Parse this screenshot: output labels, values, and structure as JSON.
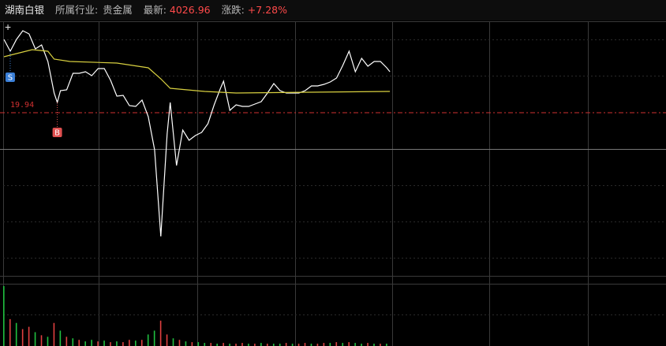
{
  "header": {
    "name": "湖南白银",
    "industry_label": "所属行业:",
    "industry": "贵金属",
    "latest_label": "最新:",
    "latest": "4026.96",
    "change_label": "涨跌:",
    "change": "+7.28%"
  },
  "chart_data": {
    "type": "line",
    "xlim": [
      0,
      210
    ],
    "ylim": [
      17.87,
      21.09
    ],
    "series": [
      {
        "color": "#ffffff",
        "x": [
          0,
          2,
          4,
          6,
          8,
          10,
          12,
          14,
          16,
          17,
          18,
          20,
          22,
          24,
          26,
          28,
          30,
          32,
          34,
          36,
          38,
          40,
          42,
          44,
          46,
          48,
          50,
          52,
          53,
          55,
          57,
          59,
          61,
          63,
          65,
          67,
          69,
          70,
          72,
          74,
          76,
          78,
          80,
          82,
          84,
          86,
          88,
          90,
          92,
          94,
          96,
          98,
          100,
          102,
          104,
          106,
          108,
          110,
          112,
          114,
          116,
          118,
          120,
          122,
          123
        ],
        "values": [
          20.87,
          20.72,
          20.87,
          20.98,
          20.94,
          20.75,
          20.8,
          20.59,
          20.19,
          20.07,
          20.22,
          20.23,
          20.44,
          20.44,
          20.46,
          20.41,
          20.5,
          20.5,
          20.35,
          20.15,
          20.16,
          20.03,
          20.02,
          20.1,
          19.89,
          19.47,
          18.37,
          19.67,
          20.07,
          19.27,
          19.72,
          19.59,
          19.65,
          19.69,
          19.8,
          20.04,
          20.25,
          20.34,
          19.97,
          20.04,
          20.02,
          20.02,
          20.05,
          20.08,
          20.19,
          20.31,
          20.22,
          20.19,
          20.19,
          20.19,
          20.22,
          20.28,
          20.28,
          20.3,
          20.33,
          20.38,
          20.54,
          20.72,
          20.46,
          20.63,
          20.53,
          20.59,
          20.59,
          20.51,
          20.46
        ]
      },
      {
        "color": "#d8d040",
        "x": [
          0,
          4,
          9,
          14,
          16,
          21,
          36,
          46,
          50,
          53,
          64,
          74,
          123
        ],
        "values": [
          20.65,
          20.69,
          20.74,
          20.72,
          20.62,
          20.59,
          20.57,
          20.51,
          20.37,
          20.25,
          20.21,
          20.19,
          20.21
        ]
      }
    ],
    "ref_line": 19.94,
    "ref_color": "#d03030",
    "signals": [
      {
        "label": "S",
        "x": 2,
        "color": "#3a7fd8"
      },
      {
        "label": "B",
        "x": 17,
        "color": "#e05050"
      }
    ],
    "volume": {
      "type": "bar",
      "ylim": [
        0,
        80
      ],
      "x": [
        0,
        2,
        4,
        6,
        8,
        10,
        12,
        14,
        16,
        18,
        20,
        22,
        24,
        26,
        28,
        30,
        32,
        34,
        36,
        38,
        40,
        42,
        44,
        46,
        48,
        50,
        52,
        54,
        56,
        58,
        60,
        62,
        64,
        66,
        68,
        70,
        72,
        74,
        76,
        78,
        80,
        82,
        84,
        86,
        88,
        90,
        92,
        94,
        96,
        98,
        100,
        102,
        104,
        106,
        108,
        110,
        112,
        114,
        116,
        118,
        120,
        122
      ],
      "values": [
        78,
        35,
        30,
        22,
        25,
        18,
        14,
        12,
        30,
        20,
        12,
        10,
        8,
        6,
        8,
        6,
        7,
        5,
        6,
        5,
        8,
        7,
        8,
        15,
        20,
        33,
        15,
        10,
        8,
        6,
        5,
        5,
        4,
        4,
        3,
        4,
        3,
        3,
        4,
        3,
        3,
        4,
        3,
        3,
        3,
        4,
        3,
        3,
        4,
        3,
        3,
        4,
        4,
        5,
        4,
        5,
        4,
        3,
        4,
        3,
        3,
        3
      ],
      "colors": [
        "#20c040",
        "#e04040",
        "#20c040",
        "#e04040",
        "#e04040",
        "#20c040",
        "#e04040",
        "#20c040",
        "#e04040",
        "#20c040",
        "#e04040",
        "#20c040",
        "#e04040",
        "#20c040",
        "#20c040",
        "#e04040",
        "#20c040",
        "#e04040",
        "#20c040",
        "#e04040",
        "#e04040",
        "#20c040",
        "#e04040",
        "#20c040",
        "#20c040",
        "#e04040",
        "#e04040",
        "#20c040",
        "#e04040",
        "#20c040",
        "#e04040",
        "#20c040",
        "#20c040",
        "#e04040",
        "#20c040",
        "#e04040",
        "#20c040",
        "#e04040",
        "#e04040",
        "#20c040",
        "#e04040",
        "#20c040",
        "#e04040",
        "#20c040",
        "#20c040",
        "#e04040",
        "#20c040",
        "#e04040",
        "#e04040",
        "#20c040",
        "#e04040",
        "#e04040",
        "#20c040",
        "#e04040",
        "#20c040",
        "#e04040",
        "#20c040",
        "#20c040",
        "#e04040",
        "#20c040",
        "#e04040",
        "#20c040"
      ]
    }
  }
}
